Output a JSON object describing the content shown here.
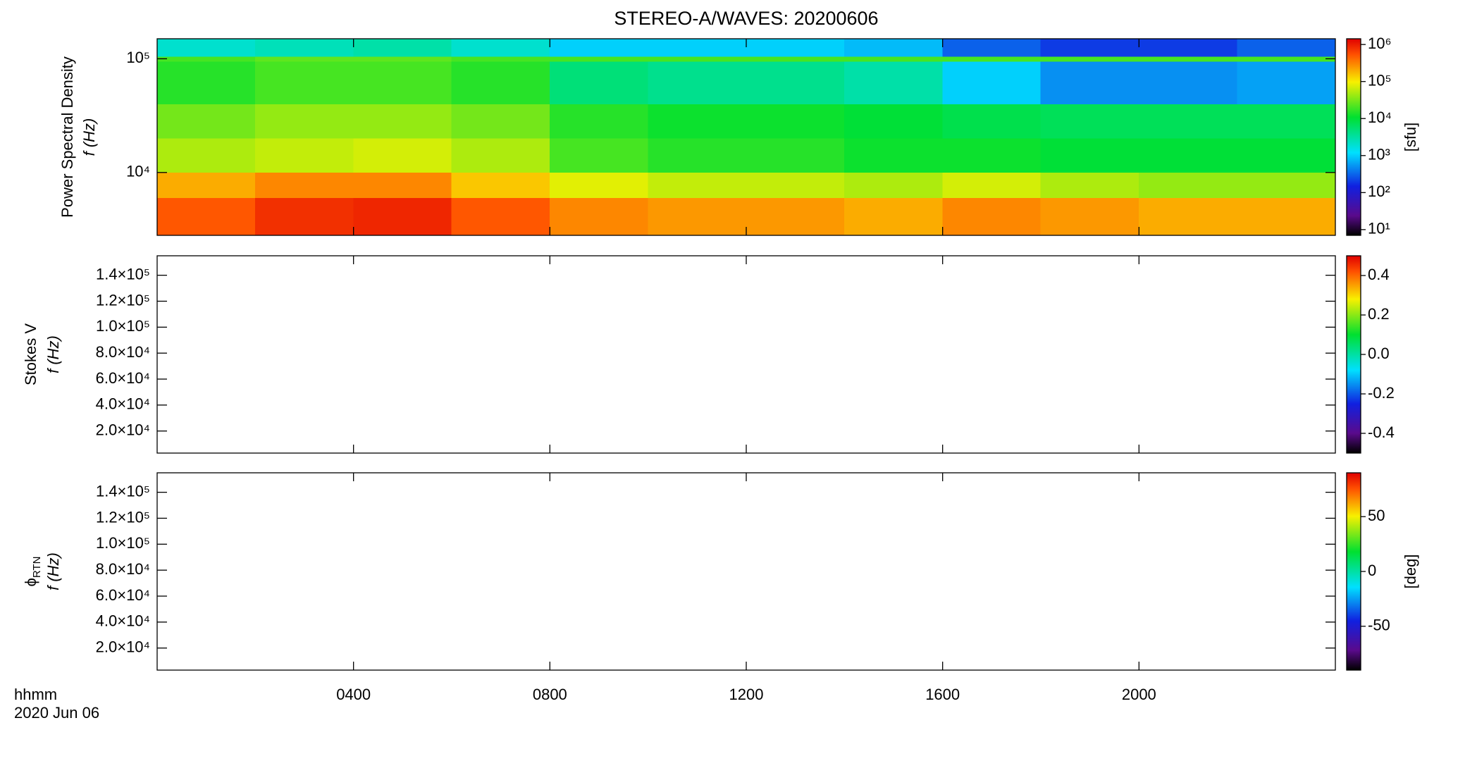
{
  "chart_data": [
    {
      "type": "heatmap",
      "title": "STEREO-A/WAVES: 20200606",
      "ylabel": [
        "Power Spectral Density",
        "f (Hz)"
      ],
      "x": [
        0,
        2,
        4,
        6,
        8,
        10,
        12,
        14,
        16,
        18,
        20,
        22,
        24
      ],
      "y": [
        2800,
        6000,
        10000,
        20000,
        40000,
        95000,
        105000,
        150000
      ],
      "values": [
        [
          500000,
          800000,
          900000,
          500000,
          300000,
          250000,
          250000,
          200000,
          300000,
          250000,
          200000,
          200000
        ],
        [
          200000,
          300000,
          300000,
          150000,
          80000,
          60000,
          60000,
          50000,
          70000,
          50000,
          40000,
          40000
        ],
        [
          50000,
          60000,
          70000,
          50000,
          20000,
          15000,
          15000,
          12000,
          12000,
          10000,
          10000,
          10000
        ],
        [
          30000,
          40000,
          40000,
          30000,
          15000,
          12000,
          12000,
          10000,
          8000,
          7000,
          7000,
          7000
        ],
        [
          15000,
          20000,
          20000,
          15000,
          5000,
          4000,
          4000,
          3000,
          1000,
          500,
          500,
          600
        ],
        [
          20000,
          25000,
          25000,
          20000,
          20000,
          20000,
          20000,
          20000,
          20000,
          20000,
          20000,
          20000
        ],
        [
          2000,
          2500,
          3000,
          2000,
          1000,
          1000,
          1000,
          800,
          300,
          200,
          200,
          300
        ]
      ],
      "xlim": [
        0,
        24
      ],
      "xticks": [
        {
          "value": 4,
          "label": "0400"
        },
        {
          "value": 8,
          "label": "0800"
        },
        {
          "value": 12,
          "label": "1200"
        },
        {
          "value": 16,
          "label": "1600"
        },
        {
          "value": 20,
          "label": "2000"
        }
      ],
      "xtick_labels": false,
      "ylim": [
        2800,
        150000
      ],
      "ylog": true,
      "yticks": [
        {
          "value": 10000,
          "label": "10⁴"
        },
        {
          "value": 100000,
          "label": "10⁵"
        }
      ],
      "colormap": "rainbow",
      "colorbar": {
        "lim": [
          7,
          1430000
        ],
        "log": true,
        "ticks": [
          {
            "value": 10,
            "label": "10¹"
          },
          {
            "value": 100,
            "label": "10²"
          },
          {
            "value": 1000,
            "label": "10³"
          },
          {
            "value": 10000,
            "label": "10⁴"
          },
          {
            "value": 100000,
            "label": "10⁵"
          },
          {
            "value": 1000000,
            "label": "10⁶"
          }
        ],
        "label": "[sfu]"
      }
    },
    {
      "type": "heatmap",
      "ylabel": [
        "Stokes V",
        "f (Hz)"
      ],
      "xlim": [
        0,
        24
      ],
      "xticks": [
        {
          "value": 4,
          "label": "0400"
        },
        {
          "value": 8,
          "label": "0800"
        },
        {
          "value": 12,
          "label": "1200"
        },
        {
          "value": 16,
          "label": "1600"
        },
        {
          "value": 20,
          "label": "2000"
        }
      ],
      "xtick_labels": false,
      "ylim": [
        3000,
        155000
      ],
      "ylog": false,
      "yticks": [
        {
          "value": 20000,
          "label": "2.0×10⁴"
        },
        {
          "value": 40000,
          "label": "4.0×10⁴"
        },
        {
          "value": 60000,
          "label": "6.0×10⁴"
        },
        {
          "value": 80000,
          "label": "8.0×10⁴"
        },
        {
          "value": 100000,
          "label": "1.0×10⁵"
        },
        {
          "value": 120000,
          "label": "1.2×10⁵"
        },
        {
          "value": 140000,
          "label": "1.4×10⁵"
        }
      ],
      "colormap": "rainbow",
      "colorbar": {
        "lim": [
          -0.5,
          0.5
        ],
        "log": false,
        "ticks": [
          -0.4,
          -0.2,
          {
            "value": 0,
            "label": "0.0"
          },
          0.2,
          0.4
        ]
      }
    },
    {
      "type": "heatmap",
      "ylabel": [
        {
          "text": "ϕ",
          "sub": "RTN"
        },
        "f (Hz)"
      ],
      "xlim": [
        0,
        24
      ],
      "xticks": [
        {
          "value": 4,
          "label": "0400"
        },
        {
          "value": 8,
          "label": "0800"
        },
        {
          "value": 12,
          "label": "1200"
        },
        {
          "value": 16,
          "label": "1600"
        },
        {
          "value": 20,
          "label": "2000"
        }
      ],
      "xtick_labels": true,
      "xlabel": "hhmm",
      "date": "2020 Jun 06",
      "ylim": [
        3000,
        155000
      ],
      "ylog": false,
      "yticks": [
        {
          "value": 20000,
          "label": "2.0×10⁴"
        },
        {
          "value": 40000,
          "label": "4.0×10⁴"
        },
        {
          "value": 60000,
          "label": "6.0×10⁴"
        },
        {
          "value": 80000,
          "label": "8.0×10⁴"
        },
        {
          "value": 100000,
          "label": "1.0×10⁵"
        },
        {
          "value": 120000,
          "label": "1.2×10⁵"
        },
        {
          "value": 140000,
          "label": "1.4×10⁵"
        }
      ],
      "colormap": "rainbow",
      "colorbar": {
        "lim": [
          -90,
          90
        ],
        "log": false,
        "ticks": [
          -50,
          0,
          50
        ],
        "label": "[deg]"
      }
    }
  ]
}
